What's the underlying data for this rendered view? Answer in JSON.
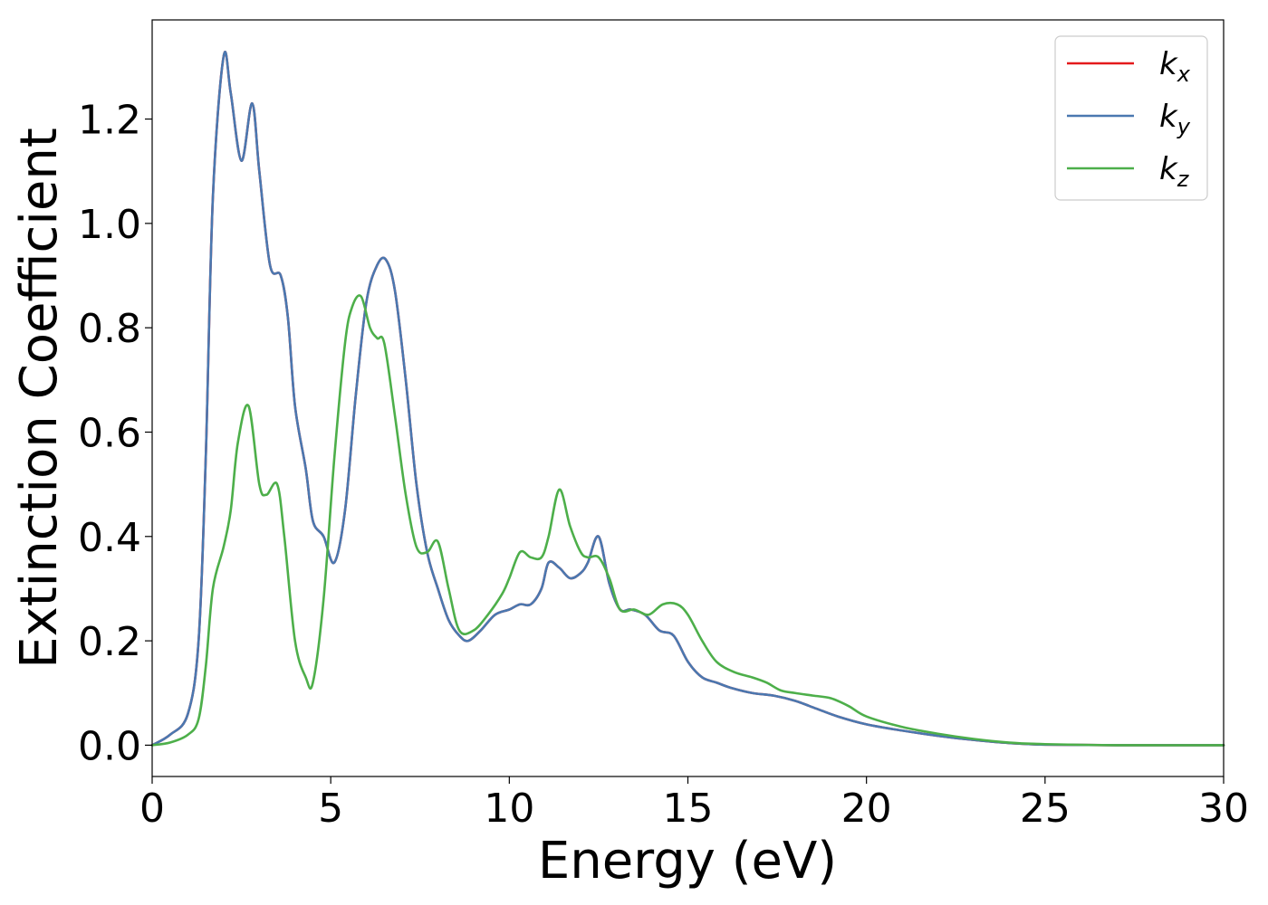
{
  "chart_data": {
    "type": "line",
    "title": "",
    "xlabel": "Energy (eV)",
    "ylabel": "Extinction Coefficient",
    "xlim": [
      0,
      30
    ],
    "ylim": [
      -0.06,
      1.39
    ],
    "xticks": [
      0,
      5,
      10,
      15,
      20,
      25,
      30
    ],
    "xtick_labels": [
      "0",
      "5",
      "10",
      "15",
      "20",
      "25",
      "30"
    ],
    "yticks": [
      0.0,
      0.2,
      0.4,
      0.6,
      0.8,
      1.0,
      1.2
    ],
    "ytick_labels": [
      "0.0",
      "0.2",
      "0.4",
      "0.6",
      "0.8",
      "1.0",
      "1.2"
    ],
    "grid": false,
    "legend_position": "top-right",
    "series": [
      {
        "name": "k_x",
        "legend_base": "k",
        "legend_sub": "x",
        "color": "#e41a1c",
        "x": [
          0,
          0.5,
          1.0,
          1.3,
          1.5,
          1.7,
          2.0,
          2.2,
          2.5,
          2.8,
          3.0,
          3.3,
          3.6,
          3.8,
          4.0,
          4.3,
          4.5,
          4.8,
          5.1,
          5.4,
          5.7,
          6.0,
          6.3,
          6.55,
          6.8,
          7.1,
          7.4,
          7.7,
          8.0,
          8.3,
          8.6,
          8.85,
          9.2,
          9.6,
          10.0,
          10.3,
          10.6,
          10.9,
          11.1,
          11.4,
          11.7,
          12.0,
          12.2,
          12.5,
          12.8,
          13.1,
          13.4,
          13.8,
          14.2,
          14.6,
          15.0,
          15.4,
          15.8,
          16.2,
          16.8,
          17.4,
          18.0,
          18.6,
          19.2,
          20.0,
          21.0,
          22.0,
          23.0,
          24.0,
          25.0,
          27.0,
          30.0
        ],
        "y": [
          0.0,
          0.02,
          0.06,
          0.2,
          0.55,
          1.05,
          1.32,
          1.25,
          1.12,
          1.23,
          1.1,
          0.92,
          0.9,
          0.82,
          0.65,
          0.53,
          0.43,
          0.4,
          0.35,
          0.45,
          0.67,
          0.85,
          0.92,
          0.93,
          0.87,
          0.7,
          0.5,
          0.37,
          0.3,
          0.24,
          0.21,
          0.2,
          0.22,
          0.25,
          0.26,
          0.27,
          0.27,
          0.3,
          0.35,
          0.34,
          0.32,
          0.33,
          0.35,
          0.4,
          0.31,
          0.26,
          0.26,
          0.25,
          0.22,
          0.21,
          0.16,
          0.13,
          0.12,
          0.11,
          0.1,
          0.095,
          0.085,
          0.07,
          0.055,
          0.04,
          0.028,
          0.018,
          0.01,
          0.004,
          0.001,
          0.0,
          0.0
        ]
      },
      {
        "name": "k_y",
        "legend_base": "k",
        "legend_sub": "y",
        "color": "#4a78b0",
        "x": [
          0,
          0.5,
          1.0,
          1.3,
          1.5,
          1.7,
          2.0,
          2.2,
          2.5,
          2.8,
          3.0,
          3.3,
          3.6,
          3.8,
          4.0,
          4.3,
          4.5,
          4.8,
          5.1,
          5.4,
          5.7,
          6.0,
          6.3,
          6.55,
          6.8,
          7.1,
          7.4,
          7.7,
          8.0,
          8.3,
          8.6,
          8.85,
          9.2,
          9.6,
          10.0,
          10.3,
          10.6,
          10.9,
          11.1,
          11.4,
          11.7,
          12.0,
          12.2,
          12.5,
          12.8,
          13.1,
          13.4,
          13.8,
          14.2,
          14.6,
          15.0,
          15.4,
          15.8,
          16.2,
          16.8,
          17.4,
          18.0,
          18.6,
          19.2,
          20.0,
          21.0,
          22.0,
          23.0,
          24.0,
          25.0,
          27.0,
          30.0
        ],
        "y": [
          0.0,
          0.02,
          0.06,
          0.2,
          0.55,
          1.05,
          1.32,
          1.25,
          1.12,
          1.23,
          1.1,
          0.92,
          0.9,
          0.82,
          0.65,
          0.53,
          0.43,
          0.4,
          0.35,
          0.45,
          0.67,
          0.85,
          0.92,
          0.93,
          0.87,
          0.7,
          0.5,
          0.37,
          0.3,
          0.24,
          0.21,
          0.2,
          0.22,
          0.25,
          0.26,
          0.27,
          0.27,
          0.3,
          0.35,
          0.34,
          0.32,
          0.33,
          0.35,
          0.4,
          0.31,
          0.26,
          0.26,
          0.25,
          0.22,
          0.21,
          0.16,
          0.13,
          0.12,
          0.11,
          0.1,
          0.095,
          0.085,
          0.07,
          0.055,
          0.04,
          0.028,
          0.018,
          0.01,
          0.004,
          0.001,
          0.0,
          0.0
        ]
      },
      {
        "name": "k_z",
        "legend_base": "k",
        "legend_sub": "z",
        "color": "#4daf4a",
        "x": [
          0,
          0.5,
          1.0,
          1.3,
          1.5,
          1.7,
          2.0,
          2.2,
          2.4,
          2.7,
          3.0,
          3.2,
          3.5,
          3.7,
          4.0,
          4.3,
          4.5,
          4.8,
          5.1,
          5.4,
          5.6,
          5.85,
          6.1,
          6.3,
          6.5,
          6.8,
          7.1,
          7.4,
          7.7,
          8.0,
          8.3,
          8.6,
          9.0,
          9.4,
          9.8,
          10.0,
          10.3,
          10.6,
          10.9,
          11.1,
          11.4,
          11.7,
          12.0,
          12.2,
          12.5,
          12.8,
          13.1,
          13.5,
          13.9,
          14.3,
          14.7,
          15.0,
          15.4,
          15.8,
          16.3,
          16.8,
          17.2,
          17.6,
          18.0,
          18.5,
          19.0,
          19.5,
          20.0,
          21.0,
          22.0,
          23.0,
          24.0,
          25.0,
          27.0,
          30.0
        ],
        "y": [
          0.0,
          0.005,
          0.02,
          0.05,
          0.15,
          0.3,
          0.38,
          0.45,
          0.58,
          0.65,
          0.5,
          0.48,
          0.5,
          0.4,
          0.2,
          0.13,
          0.12,
          0.28,
          0.55,
          0.77,
          0.84,
          0.86,
          0.8,
          0.78,
          0.77,
          0.63,
          0.48,
          0.38,
          0.37,
          0.39,
          0.3,
          0.22,
          0.22,
          0.25,
          0.29,
          0.32,
          0.37,
          0.36,
          0.36,
          0.4,
          0.49,
          0.42,
          0.37,
          0.36,
          0.36,
          0.32,
          0.26,
          0.26,
          0.25,
          0.27,
          0.27,
          0.25,
          0.2,
          0.16,
          0.14,
          0.13,
          0.12,
          0.105,
          0.1,
          0.095,
          0.09,
          0.075,
          0.055,
          0.035,
          0.022,
          0.012,
          0.005,
          0.002,
          0.0,
          0.0
        ]
      }
    ]
  }
}
